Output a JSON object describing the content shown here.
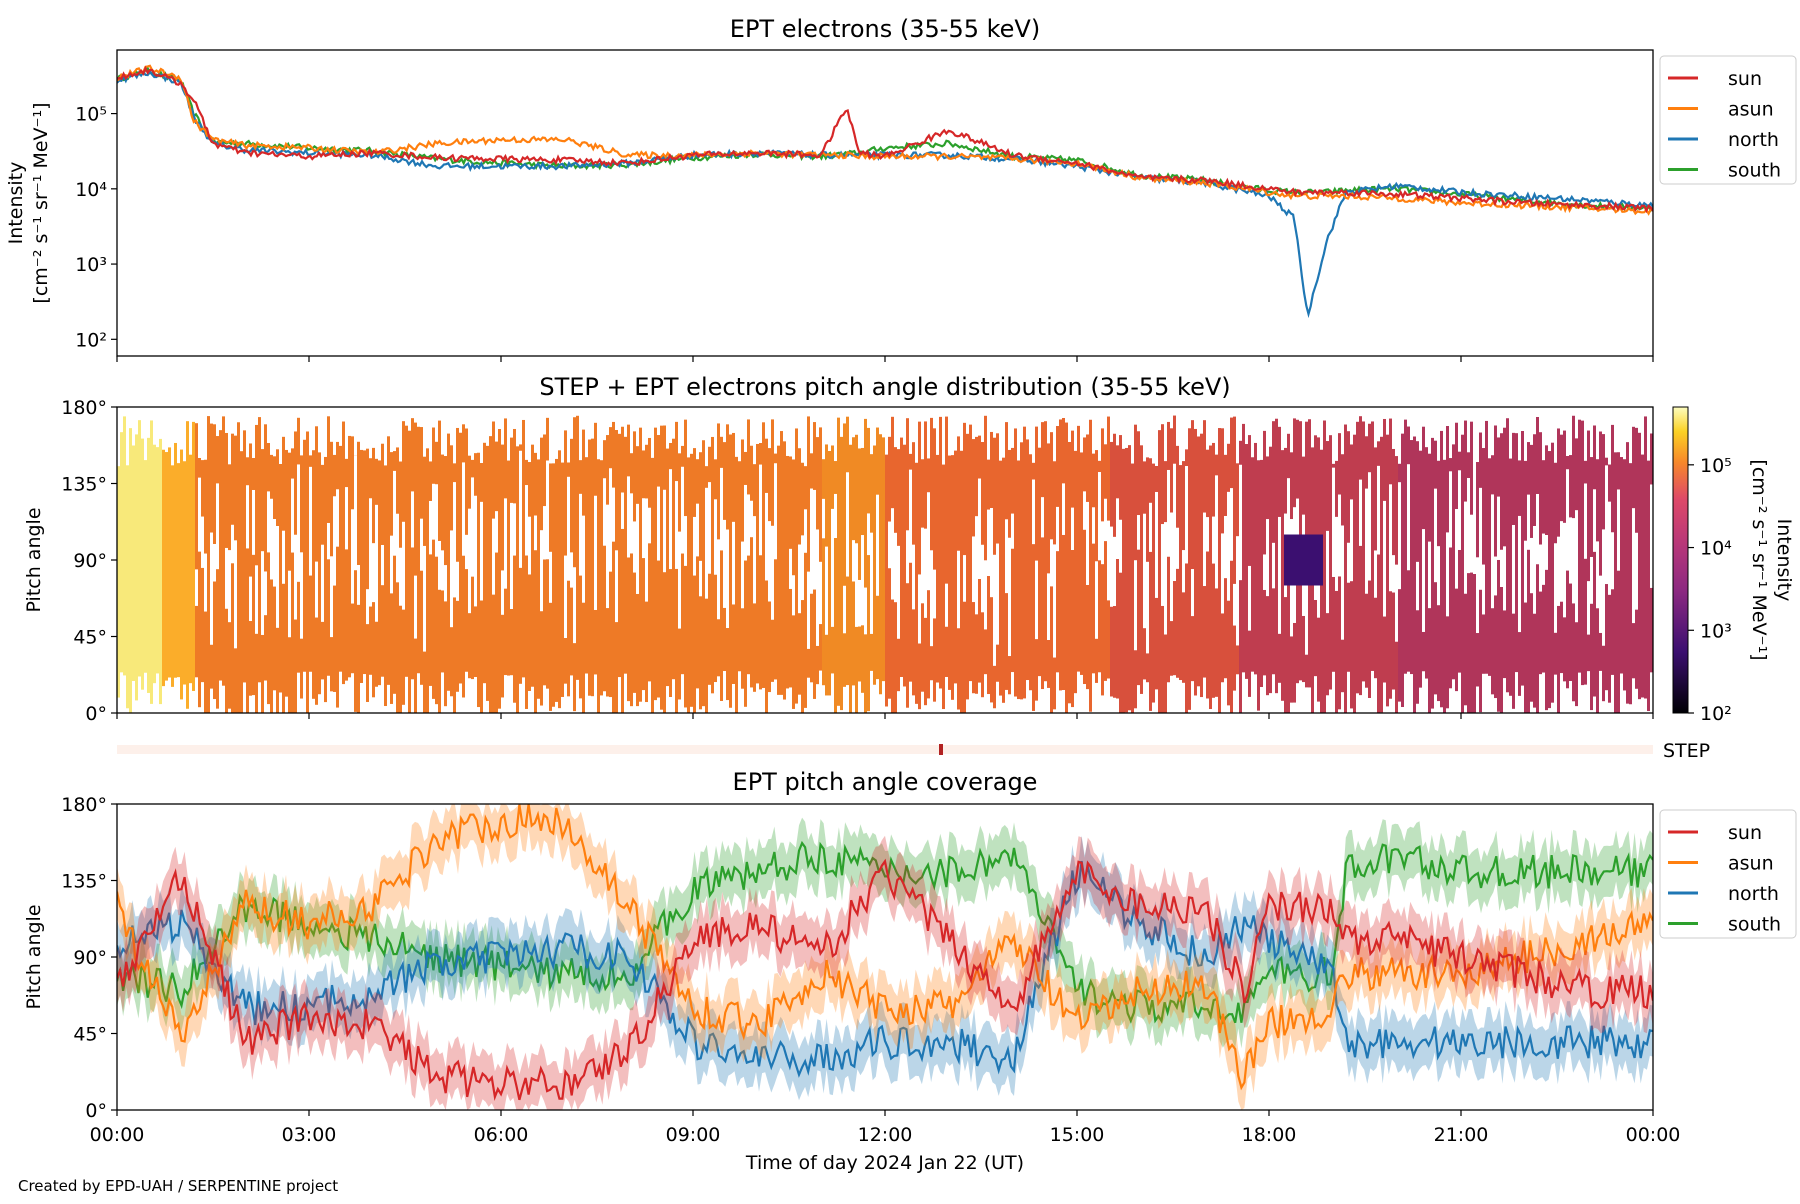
{
  "footer": "Created by EPD-UAH / SERPENTINE project",
  "xlabel": "Time of day 2024 Jan 22 (UT)",
  "x_ticks": [
    "00:00",
    "03:00",
    "06:00",
    "09:00",
    "12:00",
    "15:00",
    "18:00",
    "21:00",
    "00:00"
  ],
  "colors": {
    "sun": "#d62728",
    "asun": "#ff7f0e",
    "north": "#1f77b4",
    "south": "#2ca02c"
  },
  "step_label": "STEP",
  "chart_data": [
    {
      "type": "line",
      "title": "EPT electrons (35-55 keV)",
      "ylabel_line1": "Intensity",
      "ylabel_line2": "[cm⁻² s⁻¹ sr⁻¹ MeV⁻¹]",
      "yscale": "log",
      "ylim": [
        60,
        700000
      ],
      "y_ticks": [
        "10⁵",
        "10⁴",
        "10³",
        "10²"
      ],
      "x_hours": [
        0,
        0.5,
        1.0,
        1.2,
        1.5,
        2.0,
        3.0,
        4.0,
        5.0,
        6.0,
        7.0,
        8.0,
        9.0,
        10.0,
        11.0,
        11.4,
        11.6,
        12.0,
        13.0,
        14.0,
        15.0,
        16.0,
        17.0,
        18.0,
        18.4,
        18.6,
        18.9,
        19.2,
        20.0,
        21.0,
        22.0,
        23.0,
        24.0
      ],
      "legend": [
        "sun",
        "asun",
        "north",
        "south"
      ],
      "legend_position": "outside-right",
      "series": [
        {
          "name": "sun",
          "values": [
            300000,
            380000,
            250000,
            150000,
            40000,
            30000,
            27000,
            30000,
            26000,
            25000,
            24000,
            22000,
            28000,
            30000,
            28000,
            120000,
            30000,
            27000,
            60000,
            28000,
            22000,
            14000,
            13000,
            10000,
            9000,
            9000,
            9000,
            9000,
            8500,
            7500,
            6500,
            6000,
            5500
          ]
        },
        {
          "name": "asun",
          "values": [
            300000,
            400000,
            300000,
            80000,
            45000,
            38000,
            35000,
            30000,
            40000,
            45000,
            45000,
            28000,
            28000,
            30000,
            28000,
            28000,
            27000,
            27000,
            27000,
            25000,
            22000,
            14000,
            12000,
            9000,
            8000,
            8000,
            8000,
            8000,
            7500,
            6500,
            6000,
            5500,
            5000
          ]
        },
        {
          "name": "north",
          "values": [
            280000,
            350000,
            260000,
            90000,
            40000,
            33000,
            30000,
            28000,
            20000,
            20000,
            20000,
            22000,
            28000,
            30000,
            28000,
            28000,
            28000,
            28000,
            28000,
            25000,
            20000,
            14000,
            12000,
            8000,
            4000,
            200,
            2000,
            9000,
            11000,
            9000,
            8000,
            7000,
            6000
          ]
        },
        {
          "name": "south",
          "values": [
            290000,
            370000,
            270000,
            100000,
            42000,
            40000,
            35000,
            32000,
            25000,
            22000,
            20000,
            21000,
            26000,
            29000,
            27000,
            29000,
            30000,
            35000,
            40000,
            27000,
            24000,
            15000,
            13000,
            9500,
            9000,
            9000,
            9000,
            9500,
            10000,
            8500,
            7000,
            6000,
            5500
          ]
        }
      ]
    },
    {
      "type": "heatmap",
      "title": "STEP + EPT electrons pitch angle distribution (35-55 keV)",
      "ylabel": "Pitch angle",
      "ylim": [
        0,
        180
      ],
      "y_ticks": [
        "180°",
        "135°",
        "90°",
        "45°",
        "0°"
      ],
      "colorbar_label_line1": "Intensity",
      "colorbar_label_line2": "[cm⁻² s⁻¹ sr⁻¹ MeV⁻¹]",
      "colorbar_ticks": [
        "10⁵",
        "10⁴",
        "10³",
        "10²"
      ],
      "colorbar_scale": "log",
      "colormap": "inferno"
    },
    {
      "type": "line",
      "title": "EPT pitch angle coverage",
      "ylabel": "Pitch angle",
      "ylim": [
        0,
        180
      ],
      "y_ticks": [
        "180°",
        "135°",
        "90°",
        "45°",
        "0°"
      ],
      "legend": [
        "sun",
        "asun",
        "north",
        "south"
      ],
      "legend_position": "outside-right",
      "x_hours": [
        0,
        1,
        2,
        3,
        4,
        5,
        6,
        7,
        8,
        9,
        10,
        11,
        12,
        13,
        14,
        15,
        16,
        17,
        17.6,
        18,
        19,
        19.2,
        20,
        21,
        22,
        23,
        24
      ],
      "series": [
        {
          "name": "sun",
          "values": [
            70,
            140,
            40,
            55,
            50,
            20,
            15,
            15,
            35,
            100,
            110,
            90,
            140,
            100,
            60,
            140,
            120,
            120,
            70,
            120,
            120,
            100,
            100,
            90,
            80,
            70,
            70
          ]
        },
        {
          "name": "asun",
          "values": [
            120,
            40,
            120,
            110,
            120,
            160,
            170,
            170,
            120,
            60,
            50,
            80,
            60,
            60,
            100,
            50,
            70,
            75,
            20,
            50,
            60,
            80,
            80,
            80,
            90,
            100,
            110
          ]
        },
        {
          "name": "north",
          "values": [
            100,
            110,
            60,
            60,
            70,
            85,
            90,
            95,
            90,
            40,
            30,
            30,
            40,
            40,
            30,
            140,
            110,
            90,
            110,
            100,
            80,
            40,
            40,
            40,
            40,
            40,
            40
          ]
        },
        {
          "name": "south",
          "values": [
            80,
            70,
            120,
            110,
            100,
            90,
            85,
            80,
            80,
            130,
            140,
            150,
            140,
            140,
            150,
            70,
            60,
            60,
            60,
            80,
            80,
            140,
            150,
            140,
            140,
            140,
            140
          ]
        }
      ]
    }
  ]
}
